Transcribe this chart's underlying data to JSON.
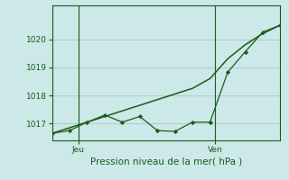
{
  "title": "Pression niveau de la mer( hPa )",
  "bg_color": "#cce8e8",
  "grid_color": "#aacece",
  "line_color": "#1a5c1a",
  "ylim": [
    1016.4,
    1021.2
  ],
  "xlim": [
    0,
    13
  ],
  "yticks": [
    1017,
    1018,
    1019,
    1020
  ],
  "ytick_labels": [
    "1017",
    "1018",
    "1019",
    "1020"
  ],
  "jeu_x": 1.5,
  "ven_x": 9.3,
  "x_jagged": [
    0,
    1,
    2,
    3,
    4,
    5,
    6,
    7,
    8,
    9,
    10,
    11,
    12,
    13
  ],
  "y_jagged": [
    1016.65,
    1016.75,
    1017.05,
    1017.3,
    1017.05,
    1017.25,
    1016.75,
    1016.72,
    1017.05,
    1017.05,
    1018.82,
    1019.55,
    1020.25,
    1020.5
  ],
  "x_smooth": [
    0,
    1,
    2,
    3,
    4,
    5,
    6,
    7,
    8,
    9,
    10,
    11,
    12,
    13
  ],
  "y_smooth": [
    1016.65,
    1016.85,
    1017.05,
    1017.25,
    1017.45,
    1017.65,
    1017.85,
    1018.05,
    1018.25,
    1018.6,
    1019.3,
    1019.8,
    1020.2,
    1020.5
  ]
}
